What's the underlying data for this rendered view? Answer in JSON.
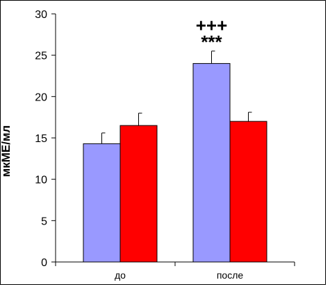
{
  "chart_data": {
    "type": "bar",
    "categories": [
      "до",
      "после"
    ],
    "series": [
      {
        "values": [
          14.3,
          24.0
        ],
        "errors": [
          1.3,
          1.5
        ],
        "color": "#9999ff"
      },
      {
        "values": [
          16.5,
          17.0
        ],
        "errors": [
          1.5,
          1.1
        ],
        "color": "#ff0000"
      }
    ],
    "title": "",
    "xlabel": "",
    "ylabel": "мкМЕ/мл",
    "ylim": [
      0,
      30
    ],
    "yticks": [
      0,
      5,
      10,
      15,
      20,
      25,
      30
    ],
    "grid": false,
    "legend": "none",
    "annotations": [
      {
        "category": "после",
        "series": 0,
        "text": "***"
      },
      {
        "category": "после",
        "series": 0,
        "text": "+++"
      }
    ]
  }
}
